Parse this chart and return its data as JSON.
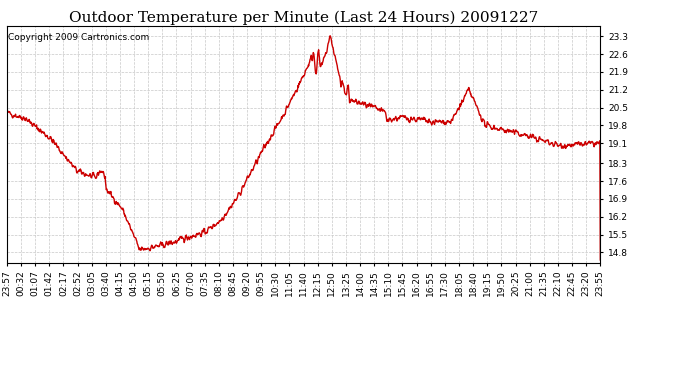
{
  "title": "Outdoor Temperature per Minute (Last 24 Hours) 20091227",
  "copyright": "Copyright 2009 Cartronics.com",
  "line_color": "#cc0000",
  "bg_color": "#ffffff",
  "plot_bg_color": "#ffffff",
  "grid_color": "#c8c8c8",
  "yticks": [
    14.8,
    15.5,
    16.2,
    16.9,
    17.6,
    18.3,
    19.1,
    19.8,
    20.5,
    21.2,
    21.9,
    22.6,
    23.3
  ],
  "ylim": [
    14.4,
    23.7
  ],
  "xtick_labels": [
    "23:57",
    "00:32",
    "01:07",
    "01:42",
    "02:17",
    "02:52",
    "03:05",
    "03:40",
    "04:15",
    "04:50",
    "05:15",
    "05:50",
    "06:25",
    "07:00",
    "07:35",
    "08:10",
    "08:45",
    "09:20",
    "09:55",
    "10:30",
    "11:05",
    "11:40",
    "12:15",
    "12:50",
    "13:25",
    "14:00",
    "14:35",
    "15:10",
    "15:45",
    "16:20",
    "16:55",
    "17:30",
    "18:05",
    "18:40",
    "19:15",
    "19:50",
    "20:25",
    "21:00",
    "21:35",
    "22:10",
    "22:45",
    "23:20",
    "23:55"
  ],
  "title_fontsize": 11,
  "copyright_fontsize": 6.5,
  "tick_fontsize": 6.5,
  "line_width": 1.0
}
